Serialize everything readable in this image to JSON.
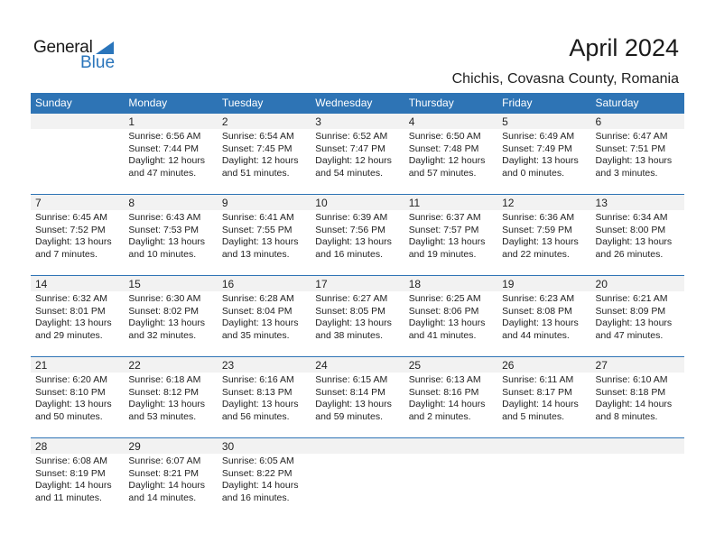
{
  "logo": {
    "general": "General",
    "blue": "Blue"
  },
  "title": "April 2024",
  "location": "Chichis, Covasna County, Romania",
  "colors": {
    "header": "#2e74b5",
    "date_band": "#f2f2f2",
    "logo_blue": "#2a75bb"
  },
  "weekdays": [
    "Sunday",
    "Monday",
    "Tuesday",
    "Wednesday",
    "Thursday",
    "Friday",
    "Saturday"
  ],
  "weeks": [
    [
      null,
      {
        "day": "1",
        "sunrise": "Sunrise: 6:56 AM",
        "sunset": "Sunset: 7:44 PM",
        "daylight": "Daylight: 12 hours",
        "minutes": "and 47 minutes."
      },
      {
        "day": "2",
        "sunrise": "Sunrise: 6:54 AM",
        "sunset": "Sunset: 7:45 PM",
        "daylight": "Daylight: 12 hours",
        "minutes": "and 51 minutes."
      },
      {
        "day": "3",
        "sunrise": "Sunrise: 6:52 AM",
        "sunset": "Sunset: 7:47 PM",
        "daylight": "Daylight: 12 hours",
        "minutes": "and 54 minutes."
      },
      {
        "day": "4",
        "sunrise": "Sunrise: 6:50 AM",
        "sunset": "Sunset: 7:48 PM",
        "daylight": "Daylight: 12 hours",
        "minutes": "and 57 minutes."
      },
      {
        "day": "5",
        "sunrise": "Sunrise: 6:49 AM",
        "sunset": "Sunset: 7:49 PM",
        "daylight": "Daylight: 13 hours",
        "minutes": "and 0 minutes."
      },
      {
        "day": "6",
        "sunrise": "Sunrise: 6:47 AM",
        "sunset": "Sunset: 7:51 PM",
        "daylight": "Daylight: 13 hours",
        "minutes": "and 3 minutes."
      }
    ],
    [
      {
        "day": "7",
        "sunrise": "Sunrise: 6:45 AM",
        "sunset": "Sunset: 7:52 PM",
        "daylight": "Daylight: 13 hours",
        "minutes": "and 7 minutes."
      },
      {
        "day": "8",
        "sunrise": "Sunrise: 6:43 AM",
        "sunset": "Sunset: 7:53 PM",
        "daylight": "Daylight: 13 hours",
        "minutes": "and 10 minutes."
      },
      {
        "day": "9",
        "sunrise": "Sunrise: 6:41 AM",
        "sunset": "Sunset: 7:55 PM",
        "daylight": "Daylight: 13 hours",
        "minutes": "and 13 minutes."
      },
      {
        "day": "10",
        "sunrise": "Sunrise: 6:39 AM",
        "sunset": "Sunset: 7:56 PM",
        "daylight": "Daylight: 13 hours",
        "minutes": "and 16 minutes."
      },
      {
        "day": "11",
        "sunrise": "Sunrise: 6:37 AM",
        "sunset": "Sunset: 7:57 PM",
        "daylight": "Daylight: 13 hours",
        "minutes": "and 19 minutes."
      },
      {
        "day": "12",
        "sunrise": "Sunrise: 6:36 AM",
        "sunset": "Sunset: 7:59 PM",
        "daylight": "Daylight: 13 hours",
        "minutes": "and 22 minutes."
      },
      {
        "day": "13",
        "sunrise": "Sunrise: 6:34 AM",
        "sunset": "Sunset: 8:00 PM",
        "daylight": "Daylight: 13 hours",
        "minutes": "and 26 minutes."
      }
    ],
    [
      {
        "day": "14",
        "sunrise": "Sunrise: 6:32 AM",
        "sunset": "Sunset: 8:01 PM",
        "daylight": "Daylight: 13 hours",
        "minutes": "and 29 minutes."
      },
      {
        "day": "15",
        "sunrise": "Sunrise: 6:30 AM",
        "sunset": "Sunset: 8:02 PM",
        "daylight": "Daylight: 13 hours",
        "minutes": "and 32 minutes."
      },
      {
        "day": "16",
        "sunrise": "Sunrise: 6:28 AM",
        "sunset": "Sunset: 8:04 PM",
        "daylight": "Daylight: 13 hours",
        "minutes": "and 35 minutes."
      },
      {
        "day": "17",
        "sunrise": "Sunrise: 6:27 AM",
        "sunset": "Sunset: 8:05 PM",
        "daylight": "Daylight: 13 hours",
        "minutes": "and 38 minutes."
      },
      {
        "day": "18",
        "sunrise": "Sunrise: 6:25 AM",
        "sunset": "Sunset: 8:06 PM",
        "daylight": "Daylight: 13 hours",
        "minutes": "and 41 minutes."
      },
      {
        "day": "19",
        "sunrise": "Sunrise: 6:23 AM",
        "sunset": "Sunset: 8:08 PM",
        "daylight": "Daylight: 13 hours",
        "minutes": "and 44 minutes."
      },
      {
        "day": "20",
        "sunrise": "Sunrise: 6:21 AM",
        "sunset": "Sunset: 8:09 PM",
        "daylight": "Daylight: 13 hours",
        "minutes": "and 47 minutes."
      }
    ],
    [
      {
        "day": "21",
        "sunrise": "Sunrise: 6:20 AM",
        "sunset": "Sunset: 8:10 PM",
        "daylight": "Daylight: 13 hours",
        "minutes": "and 50 minutes."
      },
      {
        "day": "22",
        "sunrise": "Sunrise: 6:18 AM",
        "sunset": "Sunset: 8:12 PM",
        "daylight": "Daylight: 13 hours",
        "minutes": "and 53 minutes."
      },
      {
        "day": "23",
        "sunrise": "Sunrise: 6:16 AM",
        "sunset": "Sunset: 8:13 PM",
        "daylight": "Daylight: 13 hours",
        "minutes": "and 56 minutes."
      },
      {
        "day": "24",
        "sunrise": "Sunrise: 6:15 AM",
        "sunset": "Sunset: 8:14 PM",
        "daylight": "Daylight: 13 hours",
        "minutes": "and 59 minutes."
      },
      {
        "day": "25",
        "sunrise": "Sunrise: 6:13 AM",
        "sunset": "Sunset: 8:16 PM",
        "daylight": "Daylight: 14 hours",
        "minutes": "and 2 minutes."
      },
      {
        "day": "26",
        "sunrise": "Sunrise: 6:11 AM",
        "sunset": "Sunset: 8:17 PM",
        "daylight": "Daylight: 14 hours",
        "minutes": "and 5 minutes."
      },
      {
        "day": "27",
        "sunrise": "Sunrise: 6:10 AM",
        "sunset": "Sunset: 8:18 PM",
        "daylight": "Daylight: 14 hours",
        "minutes": "and 8 minutes."
      }
    ],
    [
      {
        "day": "28",
        "sunrise": "Sunrise: 6:08 AM",
        "sunset": "Sunset: 8:19 PM",
        "daylight": "Daylight: 14 hours",
        "minutes": "and 11 minutes."
      },
      {
        "day": "29",
        "sunrise": "Sunrise: 6:07 AM",
        "sunset": "Sunset: 8:21 PM",
        "daylight": "Daylight: 14 hours",
        "minutes": "and 14 minutes."
      },
      {
        "day": "30",
        "sunrise": "Sunrise: 6:05 AM",
        "sunset": "Sunset: 8:22 PM",
        "daylight": "Daylight: 14 hours",
        "minutes": "and 16 minutes."
      },
      null,
      null,
      null,
      null
    ]
  ]
}
